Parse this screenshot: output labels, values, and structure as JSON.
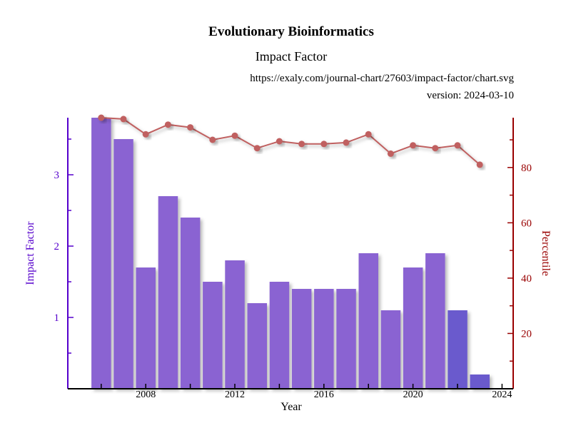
{
  "header": {
    "title": "Evolutionary Bioinformatics",
    "subtitle": "Impact Factor",
    "url": "https://exaly.com/journal-chart/27603/impact-factor/chart.svg",
    "version": "version: 2024-03-10"
  },
  "colors": {
    "bar": "#8a63d2",
    "bar_last_complete": "#6a5acd",
    "left_axis": "#5500cc",
    "right_axis": "#990000",
    "line": "#c06060"
  },
  "chart_data": {
    "type": "bar",
    "xlabel": "Year",
    "ylabel_left": "Impact Factor",
    "ylabel_right": "Percentile",
    "x_ticks": [
      "2008",
      "2012",
      "2016",
      "2020",
      "2024"
    ],
    "y_left_ticks": [
      "1",
      "2",
      "3"
    ],
    "y_right_ticks": [
      "20",
      "40",
      "60",
      "80"
    ],
    "xlim": [
      2004.5,
      2024.5
    ],
    "ylim_left": [
      0,
      3.8
    ],
    "ylim_right": [
      0,
      98
    ],
    "series": [
      {
        "name": "Impact Factor",
        "type": "bar",
        "axis": "left",
        "x": [
          2006,
          2007,
          2008,
          2009,
          2010,
          2011,
          2012,
          2013,
          2014,
          2015,
          2016,
          2017,
          2018,
          2019,
          2020,
          2021,
          2022,
          2023
        ],
        "values": [
          3.8,
          3.5,
          1.7,
          2.7,
          2.4,
          1.5,
          1.8,
          1.2,
          1.5,
          1.4,
          1.4,
          1.4,
          1.9,
          1.1,
          1.7,
          1.9,
          1.1,
          0.2
        ]
      },
      {
        "name": "Percentile",
        "type": "line",
        "axis": "right",
        "x": [
          2006,
          2007,
          2008,
          2009,
          2010,
          2011,
          2012,
          2013,
          2014,
          2015,
          2016,
          2017,
          2018,
          2019,
          2020,
          2021,
          2022,
          2023
        ],
        "values": [
          98,
          97.5,
          92,
          95.5,
          94.5,
          90,
          91.5,
          87,
          89.5,
          88.5,
          88.5,
          89,
          92,
          85,
          88,
          87,
          88,
          81
        ]
      }
    ]
  }
}
